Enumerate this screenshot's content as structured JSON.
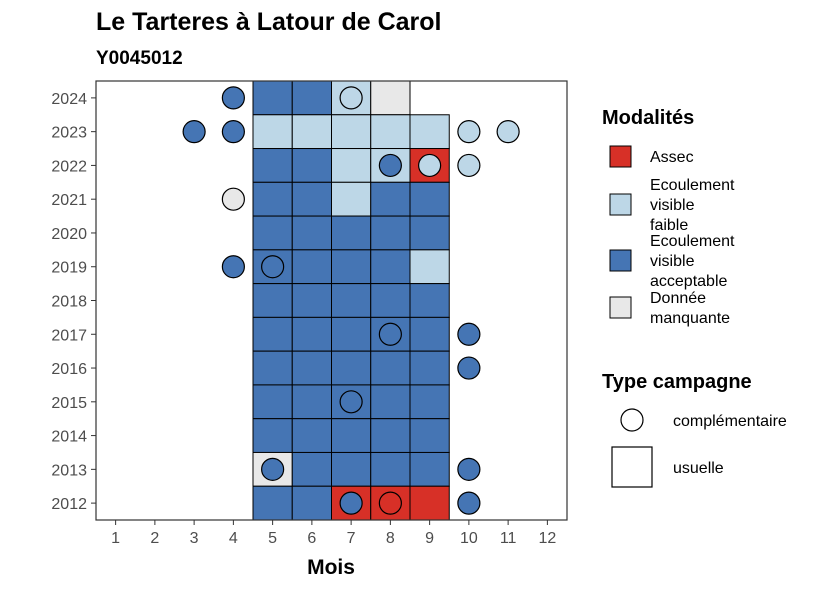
{
  "chart_data": {
    "type": "heatmap",
    "title": "Le Tarteres à Latour de Carol",
    "subtitle": "Y0045012",
    "xlabel": "Mois",
    "ylabel": "",
    "x_ticks": [
      "1",
      "2",
      "3",
      "4",
      "5",
      "6",
      "7",
      "8",
      "9",
      "10",
      "11",
      "12"
    ],
    "y_ticks": [
      "2024",
      "2023",
      "2022",
      "2021",
      "2020",
      "2019",
      "2018",
      "2017",
      "2016",
      "2015",
      "2014",
      "2013",
      "2012"
    ],
    "xlim": [
      0.5,
      12.5
    ],
    "ylim": [
      2011.5,
      2024.5
    ],
    "grid": false,
    "legend_position": "right",
    "legend_modalites_title": "Modalités",
    "legend_campagne_title": "Type campagne",
    "modalites": [
      {
        "key": "assec",
        "lines": [
          "Assec"
        ],
        "color": "#d73027"
      },
      {
        "key": "faible",
        "lines": [
          "Ecoulement",
          "visible",
          "faible"
        ],
        "color": "#bdd7e7"
      },
      {
        "key": "acceptable",
        "lines": [
          "Ecoulement",
          "visible",
          "acceptable"
        ],
        "color": "#4575b4"
      },
      {
        "key": "manquante",
        "lines": [
          "Donnée",
          "manquante"
        ],
        "color": "#e8e8e8"
      }
    ],
    "campagnes": [
      {
        "key": "complementaire",
        "label": "complémentaire",
        "shape": "circle"
      },
      {
        "key": "usuelle",
        "label": "usuelle",
        "shape": "square"
      }
    ],
    "observations": [
      {
        "year": 2024,
        "month": 4,
        "value": "acceptable",
        "campagne": "complementaire"
      },
      {
        "year": 2024,
        "month": 5,
        "value": "acceptable",
        "campagne": "usuelle"
      },
      {
        "year": 2024,
        "month": 6,
        "value": "acceptable",
        "campagne": "usuelle"
      },
      {
        "year": 2024,
        "month": 7,
        "value": "faible",
        "campagne": "usuelle"
      },
      {
        "year": 2024,
        "month": 7,
        "value": "faible",
        "campagne": "complementaire"
      },
      {
        "year": 2024,
        "month": 8,
        "value": "manquante",
        "campagne": "usuelle"
      },
      {
        "year": 2023,
        "month": 3,
        "value": "acceptable",
        "campagne": "complementaire"
      },
      {
        "year": 2023,
        "month": 4,
        "value": "acceptable",
        "campagne": "complementaire"
      },
      {
        "year": 2023,
        "month": 5,
        "value": "faible",
        "campagne": "usuelle"
      },
      {
        "year": 2023,
        "month": 6,
        "value": "faible",
        "campagne": "usuelle"
      },
      {
        "year": 2023,
        "month": 7,
        "value": "faible",
        "campagne": "usuelle"
      },
      {
        "year": 2023,
        "month": 8,
        "value": "faible",
        "campagne": "usuelle"
      },
      {
        "year": 2023,
        "month": 9,
        "value": "faible",
        "campagne": "usuelle"
      },
      {
        "year": 2023,
        "month": 10,
        "value": "faible",
        "campagne": "complementaire"
      },
      {
        "year": 2023,
        "month": 11,
        "value": "faible",
        "campagne": "complementaire"
      },
      {
        "year": 2022,
        "month": 5,
        "value": "acceptable",
        "campagne": "usuelle"
      },
      {
        "year": 2022,
        "month": 6,
        "value": "acceptable",
        "campagne": "usuelle"
      },
      {
        "year": 2022,
        "month": 7,
        "value": "faible",
        "campagne": "usuelle"
      },
      {
        "year": 2022,
        "month": 8,
        "value": "faible",
        "campagne": "usuelle"
      },
      {
        "year": 2022,
        "month": 8,
        "value": "acceptable",
        "campagne": "complementaire"
      },
      {
        "year": 2022,
        "month": 9,
        "value": "assec",
        "campagne": "usuelle"
      },
      {
        "year": 2022,
        "month": 9,
        "value": "faible",
        "campagne": "complementaire"
      },
      {
        "year": 2022,
        "month": 10,
        "value": "faible",
        "campagne": "complementaire"
      },
      {
        "year": 2021,
        "month": 4,
        "value": "manquante",
        "campagne": "complementaire"
      },
      {
        "year": 2021,
        "month": 5,
        "value": "acceptable",
        "campagne": "usuelle"
      },
      {
        "year": 2021,
        "month": 6,
        "value": "acceptable",
        "campagne": "usuelle"
      },
      {
        "year": 2021,
        "month": 7,
        "value": "faible",
        "campagne": "usuelle"
      },
      {
        "year": 2021,
        "month": 8,
        "value": "acceptable",
        "campagne": "usuelle"
      },
      {
        "year": 2021,
        "month": 9,
        "value": "acceptable",
        "campagne": "usuelle"
      },
      {
        "year": 2020,
        "month": 5,
        "value": "acceptable",
        "campagne": "usuelle"
      },
      {
        "year": 2020,
        "month": 6,
        "value": "acceptable",
        "campagne": "usuelle"
      },
      {
        "year": 2020,
        "month": 7,
        "value": "acceptable",
        "campagne": "usuelle"
      },
      {
        "year": 2020,
        "month": 8,
        "value": "acceptable",
        "campagne": "usuelle"
      },
      {
        "year": 2020,
        "month": 9,
        "value": "acceptable",
        "campagne": "usuelle"
      },
      {
        "year": 2019,
        "month": 4,
        "value": "acceptable",
        "campagne": "complementaire"
      },
      {
        "year": 2019,
        "month": 5,
        "value": "acceptable",
        "campagne": "usuelle"
      },
      {
        "year": 2019,
        "month": 5,
        "value": "acceptable",
        "campagne": "complementaire"
      },
      {
        "year": 2019,
        "month": 6,
        "value": "acceptable",
        "campagne": "usuelle"
      },
      {
        "year": 2019,
        "month": 7,
        "value": "acceptable",
        "campagne": "usuelle"
      },
      {
        "year": 2019,
        "month": 8,
        "value": "acceptable",
        "campagne": "usuelle"
      },
      {
        "year": 2019,
        "month": 9,
        "value": "faible",
        "campagne": "usuelle"
      },
      {
        "year": 2018,
        "month": 5,
        "value": "acceptable",
        "campagne": "usuelle"
      },
      {
        "year": 2018,
        "month": 6,
        "value": "acceptable",
        "campagne": "usuelle"
      },
      {
        "year": 2018,
        "month": 7,
        "value": "acceptable",
        "campagne": "usuelle"
      },
      {
        "year": 2018,
        "month": 8,
        "value": "acceptable",
        "campagne": "usuelle"
      },
      {
        "year": 2018,
        "month": 9,
        "value": "acceptable",
        "campagne": "usuelle"
      },
      {
        "year": 2017,
        "month": 5,
        "value": "acceptable",
        "campagne": "usuelle"
      },
      {
        "year": 2017,
        "month": 6,
        "value": "acceptable",
        "campagne": "usuelle"
      },
      {
        "year": 2017,
        "month": 7,
        "value": "acceptable",
        "campagne": "usuelle"
      },
      {
        "year": 2017,
        "month": 8,
        "value": "acceptable",
        "campagne": "usuelle"
      },
      {
        "year": 2017,
        "month": 8,
        "value": "acceptable",
        "campagne": "complementaire"
      },
      {
        "year": 2017,
        "month": 9,
        "value": "acceptable",
        "campagne": "usuelle"
      },
      {
        "year": 2017,
        "month": 10,
        "value": "acceptable",
        "campagne": "complementaire"
      },
      {
        "year": 2016,
        "month": 5,
        "value": "acceptable",
        "campagne": "usuelle"
      },
      {
        "year": 2016,
        "month": 6,
        "value": "acceptable",
        "campagne": "usuelle"
      },
      {
        "year": 2016,
        "month": 7,
        "value": "acceptable",
        "campagne": "usuelle"
      },
      {
        "year": 2016,
        "month": 8,
        "value": "acceptable",
        "campagne": "usuelle"
      },
      {
        "year": 2016,
        "month": 9,
        "value": "acceptable",
        "campagne": "usuelle"
      },
      {
        "year": 2016,
        "month": 10,
        "value": "acceptable",
        "campagne": "complementaire"
      },
      {
        "year": 2015,
        "month": 5,
        "value": "acceptable",
        "campagne": "usuelle"
      },
      {
        "year": 2015,
        "month": 6,
        "value": "acceptable",
        "campagne": "usuelle"
      },
      {
        "year": 2015,
        "month": 7,
        "value": "acceptable",
        "campagne": "usuelle"
      },
      {
        "year": 2015,
        "month": 7,
        "value": "acceptable",
        "campagne": "complementaire"
      },
      {
        "year": 2015,
        "month": 8,
        "value": "acceptable",
        "campagne": "usuelle"
      },
      {
        "year": 2015,
        "month": 9,
        "value": "acceptable",
        "campagne": "usuelle"
      },
      {
        "year": 2014,
        "month": 5,
        "value": "acceptable",
        "campagne": "usuelle"
      },
      {
        "year": 2014,
        "month": 6,
        "value": "acceptable",
        "campagne": "usuelle"
      },
      {
        "year": 2014,
        "month": 7,
        "value": "acceptable",
        "campagne": "usuelle"
      },
      {
        "year": 2014,
        "month": 8,
        "value": "acceptable",
        "campagne": "usuelle"
      },
      {
        "year": 2014,
        "month": 9,
        "value": "acceptable",
        "campagne": "usuelle"
      },
      {
        "year": 2013,
        "month": 5,
        "value": "manquante",
        "campagne": "usuelle"
      },
      {
        "year": 2013,
        "month": 5,
        "value": "acceptable",
        "campagne": "complementaire"
      },
      {
        "year": 2013,
        "month": 6,
        "value": "acceptable",
        "campagne": "usuelle"
      },
      {
        "year": 2013,
        "month": 7,
        "value": "acceptable",
        "campagne": "usuelle"
      },
      {
        "year": 2013,
        "month": 8,
        "value": "acceptable",
        "campagne": "usuelle"
      },
      {
        "year": 2013,
        "month": 9,
        "value": "acceptable",
        "campagne": "usuelle"
      },
      {
        "year": 2013,
        "month": 10,
        "value": "acceptable",
        "campagne": "complementaire"
      },
      {
        "year": 2012,
        "month": 5,
        "value": "acceptable",
        "campagne": "usuelle"
      },
      {
        "year": 2012,
        "month": 6,
        "value": "acceptable",
        "campagne": "usuelle"
      },
      {
        "year": 2012,
        "month": 7,
        "value": "assec",
        "campagne": "usuelle"
      },
      {
        "year": 2012,
        "month": 7,
        "value": "acceptable",
        "campagne": "complementaire"
      },
      {
        "year": 2012,
        "month": 8,
        "value": "assec",
        "campagne": "usuelle"
      },
      {
        "year": 2012,
        "month": 8,
        "value": "assec",
        "campagne": "complementaire"
      },
      {
        "year": 2012,
        "month": 9,
        "value": "assec",
        "campagne": "usuelle"
      },
      {
        "year": 2012,
        "month": 10,
        "value": "acceptable",
        "campagne": "complementaire"
      }
    ]
  }
}
